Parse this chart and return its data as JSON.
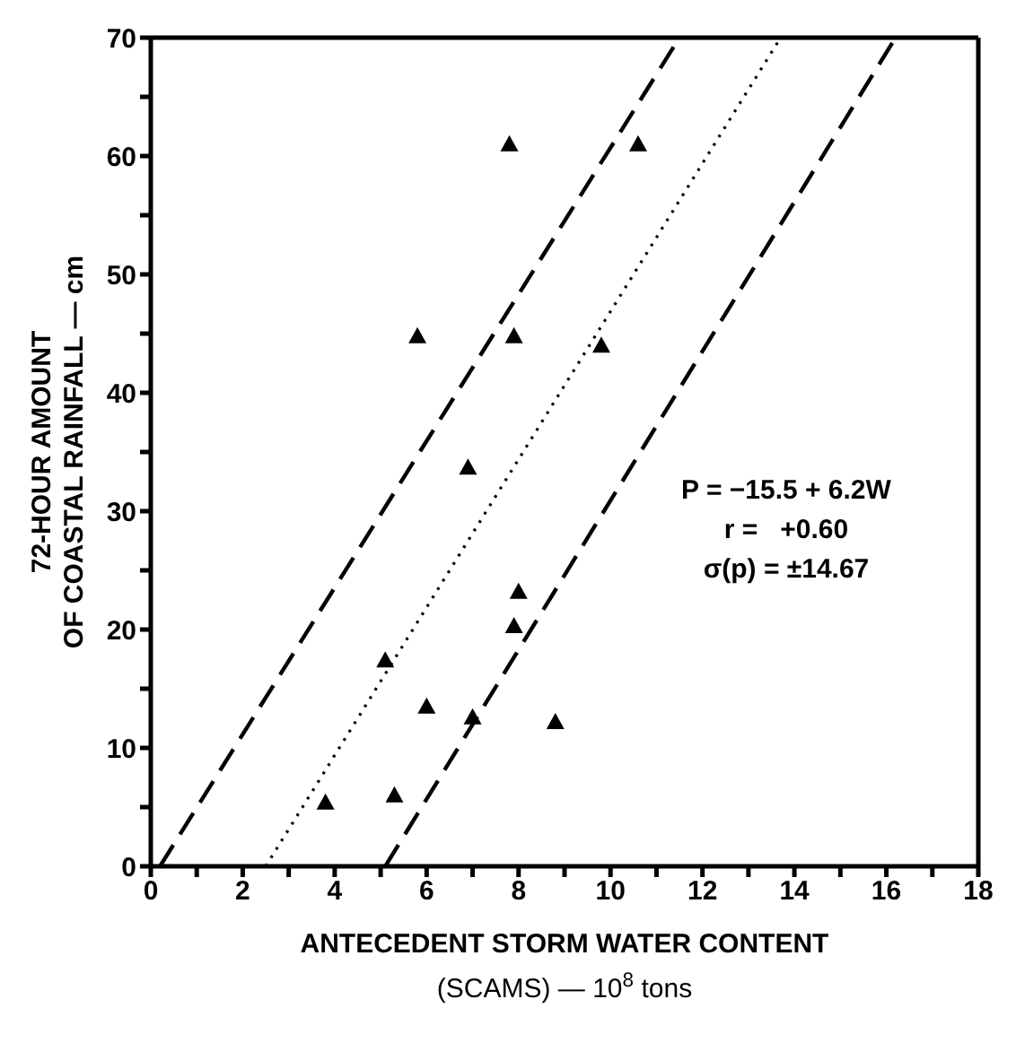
{
  "chart_data": {
    "type": "scatter",
    "xlabel": "ANTECEDENT STORM WATER CONTENT\n(SCAMS) — 10$^{8}$ tons",
    "ylabel": "72-HOUR AMOUNT\nOF COASTAL RAINFALL — cm",
    "xlim": [
      0,
      18
    ],
    "ylim": [
      0,
      70
    ],
    "xticks": [
      0,
      {
        "value": 1,
        "label": null
      },
      2,
      {
        "value": 3,
        "label": null
      },
      4,
      {
        "value": 5,
        "label": null
      },
      6,
      {
        "value": 7,
        "label": null
      },
      8,
      {
        "value": 9,
        "label": null
      },
      10,
      {
        "value": 11,
        "label": null
      },
      12,
      {
        "value": 13,
        "label": null
      },
      14,
      {
        "value": 15,
        "label": null
      },
      16,
      {
        "value": 17,
        "label": null
      },
      18
    ],
    "yticks": [
      0,
      {
        "value": 5,
        "label": null
      },
      10,
      {
        "value": 15,
        "label": null
      },
      20,
      {
        "value": 25,
        "label": null
      },
      30,
      {
        "value": 35,
        "label": null
      },
      40,
      {
        "value": 45,
        "label": null
      },
      50,
      {
        "value": 55,
        "label": null
      },
      60,
      {
        "value": 65,
        "label": null
      },
      70
    ],
    "grid": false,
    "legend": false,
    "annotations": [
      "P = −15.5 + 6.2W",
      "r =   +0.60",
      "σ(p) = ±14.67"
    ],
    "series": [
      {
        "color": "#000000",
        "marker": "triangle",
        "x": [
          3.8,
          5.1,
          5.3,
          5.8,
          6.0,
          6.9,
          7.0,
          7.8,
          7.9,
          7.9,
          8.0,
          8.8,
          9.8,
          10.6
        ],
        "values": [
          5.4,
          17.4,
          6,
          44.8,
          13.5,
          33.7,
          12.6,
          61,
          44.8,
          20.3,
          23.2,
          12.2,
          44,
          61
        ]
      },
      {
        "type": "line",
        "color": "#000000",
        "line_style": "dotted",
        "marker": "none",
        "x": [
          2.5,
          13.7
        ],
        "values": [
          0,
          70
        ]
      },
      {
        "type": "line",
        "color": "#000000",
        "line_style": "dashed",
        "marker": "none",
        "x": [
          0.2,
          11.5
        ],
        "values": [
          0,
          70
        ]
      },
      {
        "type": "line",
        "color": "#000000",
        "line_style": "dashed",
        "marker": "none",
        "x": [
          5.1,
          16.2
        ],
        "values": [
          0,
          70
        ]
      }
    ]
  }
}
